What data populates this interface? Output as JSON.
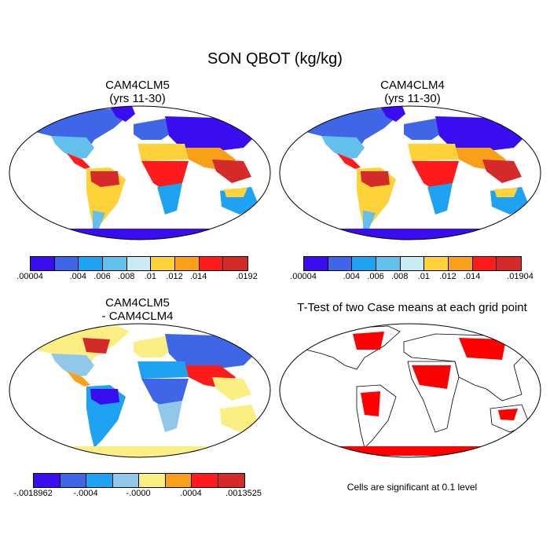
{
  "title": "SON QBOT (kg/kg)",
  "panels": [
    {
      "title1": "CAM4CLM5",
      "title2": "(yrs 11-30)"
    },
    {
      "title1": "CAM4CLM4",
      "title2": "(yrs 11-30)"
    },
    {
      "title1": "CAM4CLM5",
      "title2": "- CAM4CLM4"
    },
    {
      "title1": "T-Test of two Case means at each grid point",
      "title2": ""
    }
  ],
  "colorbars": [
    {
      "colors": [
        "#3a0df0",
        "#3f66e6",
        "#1ea2f2",
        "#63bfec",
        "#c9ebf2",
        "#ffd23a",
        "#f9a01b",
        "#ff1b1b",
        "#d42a2a"
      ],
      "labels": [
        ".00004",
        ".004",
        ".006",
        ".008",
        ".01",
        ".012",
        ".014",
        ".0192"
      ]
    },
    {
      "colors": [
        "#3a0df0",
        "#3f66e6",
        "#1ea2f2",
        "#63bfec",
        "#c9ebf2",
        "#ffd23a",
        "#f9a01b",
        "#ff1b1b",
        "#d42a2a"
      ],
      "labels": [
        ".00004",
        ".004",
        ".006",
        ".008",
        ".01",
        ".012",
        ".014",
        ".01904"
      ]
    },
    {
      "colors": [
        "#3a0df0",
        "#3f66e6",
        "#1ea2f2",
        "#91c8ea",
        "#fbef83",
        "#f9a01b",
        "#ff1b1b",
        "#d42a2a"
      ],
      "labels": [
        "-.0018962",
        "-.0004",
        "-.0000",
        ".0004",
        ".0013525"
      ]
    }
  ],
  "note": "Cells are significant at 0.1 level"
}
